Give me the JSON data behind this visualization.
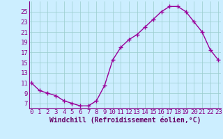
{
  "x": [
    0,
    1,
    2,
    3,
    4,
    5,
    6,
    7,
    8,
    9,
    10,
    11,
    12,
    13,
    14,
    15,
    16,
    17,
    18,
    19,
    20,
    21,
    22,
    23
  ],
  "y": [
    11,
    9.5,
    9,
    8.5,
    7.5,
    7,
    6.5,
    6.5,
    7.5,
    10.5,
    15.5,
    18,
    19.5,
    20.5,
    22,
    23.5,
    25,
    26,
    26,
    25,
    23,
    21,
    17.5,
    15.5
  ],
  "line_color": "#990099",
  "marker": "+",
  "bg_color": "#cceeff",
  "grid_color": "#99cccc",
  "xlabel": "Windchill (Refroidissement éolien,°C)",
  "xlabel_color": "#660066",
  "xtick_labels": [
    "0",
    "1",
    "2",
    "3",
    "4",
    "5",
    "6",
    "7",
    "8",
    "9",
    "10",
    "11",
    "12",
    "13",
    "14",
    "15",
    "16",
    "17",
    "18",
    "19",
    "20",
    "21",
    "22",
    "23"
  ],
  "ytick_labels": [
    "7",
    "9",
    "11",
    "13",
    "15",
    "17",
    "19",
    "21",
    "23",
    "25"
  ],
  "ytick_vals": [
    7,
    9,
    11,
    13,
    15,
    17,
    19,
    21,
    23,
    25
  ],
  "ylim": [
    6.0,
    27.0
  ],
  "xlim": [
    -0.3,
    23.3
  ],
  "tick_color": "#880088",
  "tick_fontsize": 6.5,
  "xlabel_fontsize": 7.0,
  "linewidth": 1.0,
  "markersize": 4,
  "spine_color": "#880088"
}
